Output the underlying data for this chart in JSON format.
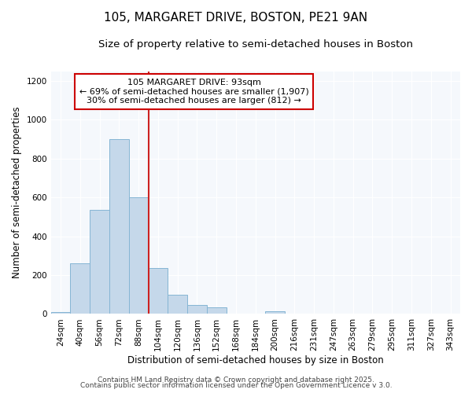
{
  "title_line1": "105, MARGARET DRIVE, BOSTON, PE21 9AN",
  "title_line2": "Size of property relative to semi-detached houses in Boston",
  "xlabel": "Distribution of semi-detached houses by size in Boston",
  "ylabel": "Number of semi-detached properties",
  "categories": [
    "24sqm",
    "40sqm",
    "56sqm",
    "72sqm",
    "88sqm",
    "104sqm",
    "120sqm",
    "136sqm",
    "152sqm",
    "168sqm",
    "184sqm",
    "200sqm",
    "216sqm",
    "231sqm",
    "247sqm",
    "263sqm",
    "279sqm",
    "295sqm",
    "311sqm",
    "327sqm",
    "343sqm"
  ],
  "values": [
    10,
    260,
    535,
    900,
    600,
    235,
    100,
    45,
    35,
    0,
    0,
    12,
    0,
    0,
    0,
    0,
    0,
    0,
    0,
    0,
    0
  ],
  "bar_color": "#c5d8ea",
  "bar_edgecolor": "#85b5d4",
  "red_line_label": "105 MARGARET DRIVE: 93sqm",
  "annotation_line2": "← 69% of semi-detached houses are smaller (1,907)",
  "annotation_line3": "30% of semi-detached houses are larger (812) →",
  "annotation_box_facecolor": "#ffffff",
  "annotation_box_edgecolor": "#cc0000",
  "ylim": [
    0,
    1250
  ],
  "yticks": [
    0,
    200,
    400,
    600,
    800,
    1000,
    1200
  ],
  "footer_line1": "Contains HM Land Registry data © Crown copyright and database right 2025.",
  "footer_line2": "Contains public sector information licensed under the Open Government Licence v 3.0.",
  "bg_color": "#ffffff",
  "plot_bg_color": "#f5f8fc",
  "grid_color": "#ffffff",
  "title_fontsize": 11,
  "subtitle_fontsize": 9.5,
  "tick_fontsize": 7.5,
  "ylabel_fontsize": 8.5,
  "xlabel_fontsize": 8.5,
  "footer_fontsize": 6.5,
  "annotation_fontsize": 8
}
